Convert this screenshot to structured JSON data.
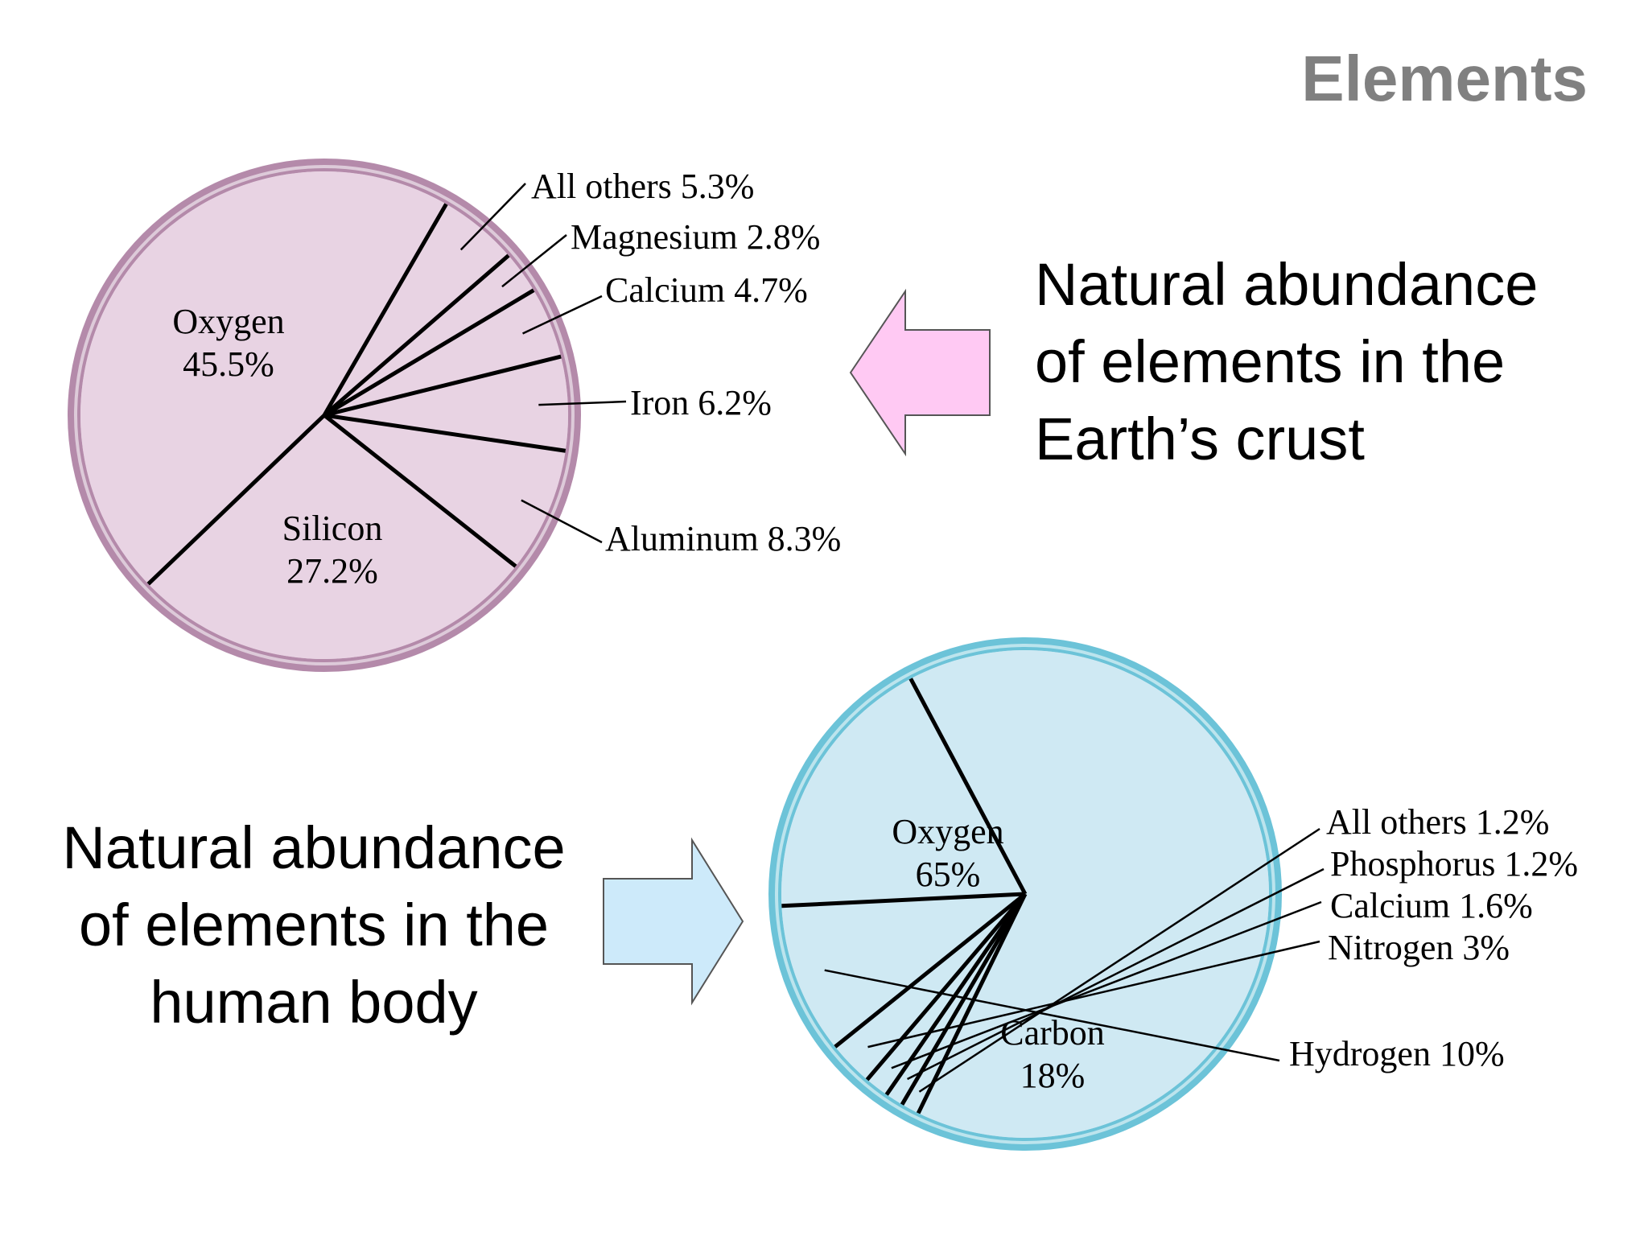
{
  "page": {
    "title": "Elements",
    "crust_caption_lines": [
      "Natural abundance",
      "of elements in the",
      "Earth’s crust"
    ],
    "body_caption_lines": [
      "Natural abundance",
      "of elements in the",
      "human body"
    ],
    "colors": {
      "crust_fill": "#e8d3e3",
      "crust_ring": "#b48aaa",
      "body_fill": "#cfe9f3",
      "body_ring": "#6cc3d8",
      "crust_arrow": "#ffc9f3",
      "body_arrow": "#cdeafa",
      "title": "#808080"
    }
  },
  "chart_data": [
    {
      "type": "pie",
      "title": "",
      "slices": [
        {
          "name": "Oxygen",
          "value": 45.5,
          "label": "Oxygen",
          "value_label": "45.5%"
        },
        {
          "name": "Silicon",
          "value": 27.2,
          "label": "Silicon",
          "value_label": "27.2%"
        },
        {
          "name": "Aluminum",
          "value": 8.3,
          "label": "Aluminum 8.3%"
        },
        {
          "name": "Iron",
          "value": 6.2,
          "label": "Iron 6.2%"
        },
        {
          "name": "Calcium",
          "value": 4.7,
          "label": "Calcium 4.7%"
        },
        {
          "name": "Magnesium",
          "value": 2.8,
          "label": "Magnesium 2.8%"
        },
        {
          "name": "All others",
          "value": 5.3,
          "label": "All others 5.3%"
        }
      ]
    },
    {
      "type": "pie",
      "title": "",
      "slices": [
        {
          "name": "Oxygen",
          "value": 65,
          "label": "Oxygen",
          "value_label": "65%"
        },
        {
          "name": "Carbon",
          "value": 18,
          "label": "Carbon",
          "value_label": "18%"
        },
        {
          "name": "Hydrogen",
          "value": 10,
          "label": "Hydrogen 10%"
        },
        {
          "name": "Nitrogen",
          "value": 3,
          "label": "Nitrogen 3%"
        },
        {
          "name": "Calcium",
          "value": 1.6,
          "label": "Calcium 1.6%"
        },
        {
          "name": "Phosphorus",
          "value": 1.2,
          "label": "Phosphorus 1.2%"
        },
        {
          "name": "All others",
          "value": 1.2,
          "label": "All others 1.2%"
        }
      ]
    }
  ]
}
